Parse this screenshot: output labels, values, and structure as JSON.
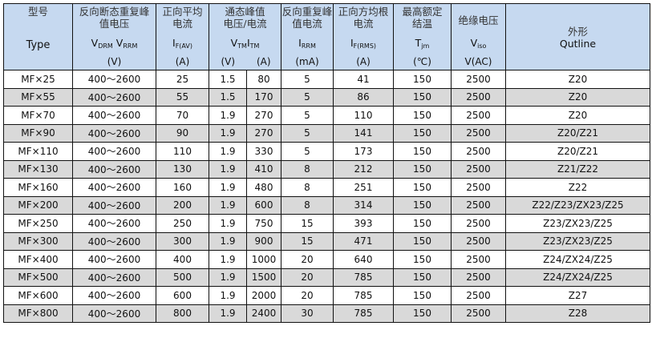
{
  "header": {
    "type": {
      "cn": "型号",
      "en": "Type"
    },
    "vdrm": {
      "cn1": "反向断态重复峰",
      "cn2": "值电压",
      "sym1": "V",
      "sub1": "DRM",
      "sym2": " V",
      "sub2": "RRM",
      "unit": "(V)"
    },
    "ifav": {
      "cn1": "正向平均",
      "cn2": "电流",
      "sym": "I",
      "sub": "F(AV)",
      "unit": "(A)"
    },
    "vtm": {
      "cn1": "通态峰值",
      "cn2": "电压/电流",
      "sym1": "V",
      "sub1": "TM",
      "sym2": "I",
      "sub2": "TM",
      "unit1": "(V)",
      "unit2": "(A)"
    },
    "irrm": {
      "cn1": "反向重复峰",
      "cn2": "值电流",
      "sym": "I",
      "sub": "RRM",
      "unit": "(mA)"
    },
    "ifrms": {
      "cn1": "正向方均根",
      "cn2": "电流",
      "sym": "I",
      "sub": "F(RMS)",
      "unit": "(A)"
    },
    "tjm": {
      "cn1": "最高额定",
      "cn2": "结温",
      "sym": "T",
      "sub": "jm",
      "unit": "(℃)"
    },
    "viso": {
      "cn": "绝缘电压",
      "sym": "V",
      "sub": "iso",
      "unit": "V(AC)"
    },
    "outline": {
      "cn": "外形",
      "en": "Qutline"
    }
  },
  "rows": [
    [
      "MF×25",
      "400～2600",
      "25",
      "1.5",
      "80",
      "5",
      "41",
      "150",
      "2500",
      "Z20"
    ],
    [
      "MF×55",
      "400～2600",
      "55",
      "1.5",
      "170",
      "5",
      "86",
      "150",
      "2500",
      "Z20"
    ],
    [
      "MF×70",
      "400～2600",
      "70",
      "1.9",
      "270",
      "5",
      "110",
      "150",
      "2500",
      "Z20"
    ],
    [
      "MF×90",
      "400～2600",
      "90",
      "1.9",
      "270",
      "5",
      "141",
      "150",
      "2500",
      "Z20/Z21"
    ],
    [
      "MF×110",
      "400～2600",
      "110",
      "1.9",
      "330",
      "5",
      "173",
      "150",
      "2500",
      "Z20/Z21"
    ],
    [
      "MF×130",
      "400～2600",
      "130",
      "1.9",
      "410",
      "8",
      "212",
      "150",
      "2500",
      "Z21/Z22"
    ],
    [
      "MF×160",
      "400～2600",
      "160",
      "1.9",
      "480",
      "8",
      "251",
      "150",
      "2500",
      "Z22"
    ],
    [
      "MF×200",
      "400～2600",
      "200",
      "1.9",
      "600",
      "8",
      "314",
      "150",
      "2500",
      "Z22/Z23/ZX23/Z25"
    ],
    [
      "MF×250",
      "400～2600",
      "250",
      "1.9",
      "750",
      "15",
      "393",
      "150",
      "2500",
      "Z23/ZX23/Z25"
    ],
    [
      "MF×300",
      "400～2600",
      "300",
      "1.9",
      "900",
      "15",
      "471",
      "150",
      "2500",
      "Z23/ZX23/Z25"
    ],
    [
      "MF×400",
      "400～2600",
      "400",
      "1.9",
      "1000",
      "20",
      "640",
      "150",
      "2500",
      "Z24/ZX24/Z25"
    ],
    [
      "MF×500",
      "400～2600",
      "500",
      "1.9",
      "1500",
      "20",
      "785",
      "150",
      "2500",
      "Z24/ZX24/Z25"
    ],
    [
      "MF×600",
      "400～2600",
      "600",
      "1.9",
      "2000",
      "20",
      "785",
      "150",
      "2500",
      "Z27"
    ],
    [
      "MF×800",
      "400～2600",
      "800",
      "1.9",
      "2400",
      "30",
      "785",
      "150",
      "2500",
      "Z28"
    ]
  ],
  "colors": {
    "header_bg": "#c6d9f0",
    "stripe_bg": "#d9d9d9",
    "border": "#111111"
  }
}
